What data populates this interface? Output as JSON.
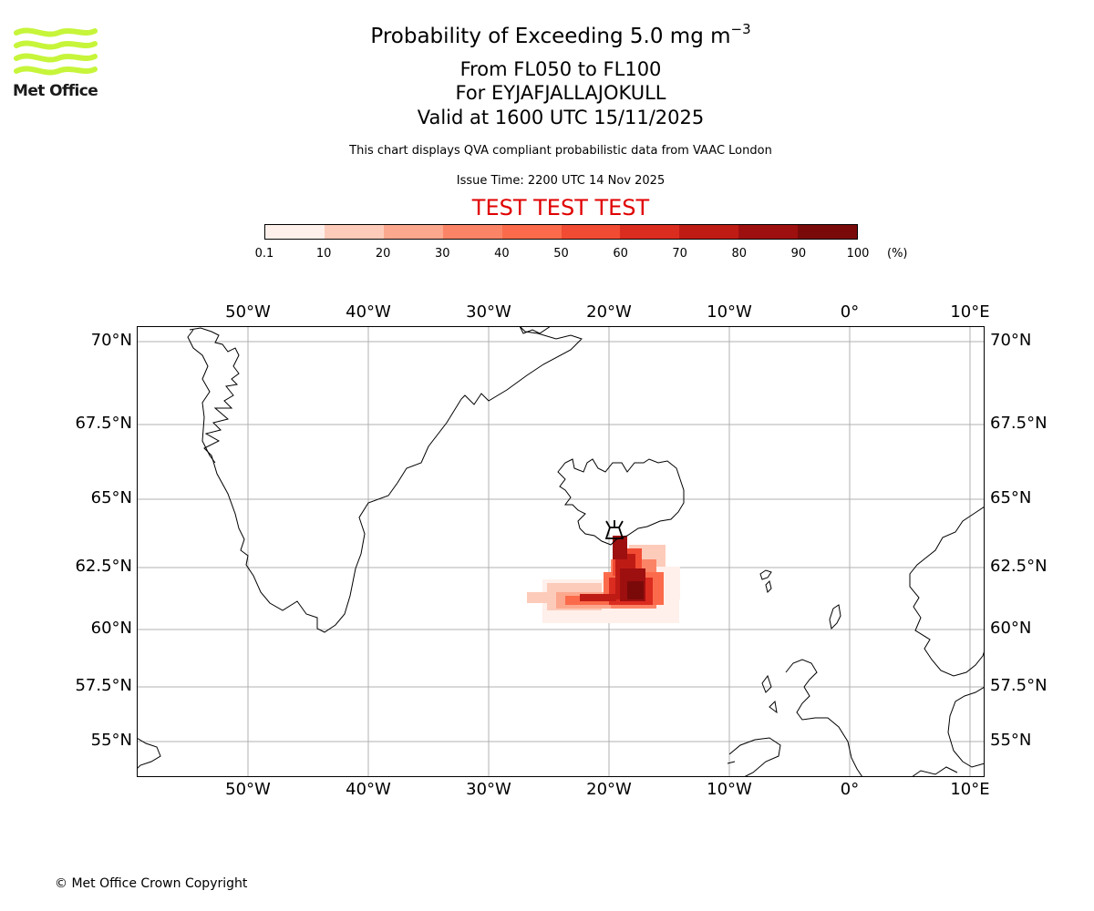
{
  "header": {
    "title_main": "Probability of Exceeding 5.0 mg m",
    "title_sup": "−3",
    "line2": "From FL050 to FL100",
    "line3": "For EYJAFJALLAJOKULL",
    "line4": "Valid at 1600 UTC 15/11/2025",
    "note": "This chart displays QVA compliant probabilistic data from VAAC London",
    "issue_time": "Issue Time: 2200 UTC 14 Nov 2025",
    "test_banner": "TEST TEST TEST",
    "test_color": "#e00000"
  },
  "logo": {
    "text": "Met Office",
    "icon": "met-office-wave-logo",
    "color": "#c6f53a"
  },
  "colorbar": {
    "ticks": [
      "0.1",
      "10",
      "20",
      "30",
      "40",
      "50",
      "60",
      "70",
      "80",
      "90",
      "100"
    ],
    "unit": "(%)",
    "colors": [
      "#fff0eb",
      "#fdcbb9",
      "#fca88e",
      "#fc8466",
      "#fb6b4b",
      "#f14b33",
      "#db2c20",
      "#bf1b15",
      "#9e0f0f",
      "#7a0a0a",
      "#5a0707"
    ]
  },
  "map": {
    "lon_labels": [
      "50°W",
      "40°W",
      "30°W",
      "20°W",
      "10°W",
      "0°",
      "10°E"
    ],
    "lat_labels": [
      "70°N",
      "67.5°N",
      "65°N",
      "62.5°N",
      "60°N",
      "57.5°N",
      "55°N"
    ],
    "volcano_icon": "volcano-icon"
  },
  "footer": {
    "copyright": "© Met Office Crown Copyright"
  }
}
